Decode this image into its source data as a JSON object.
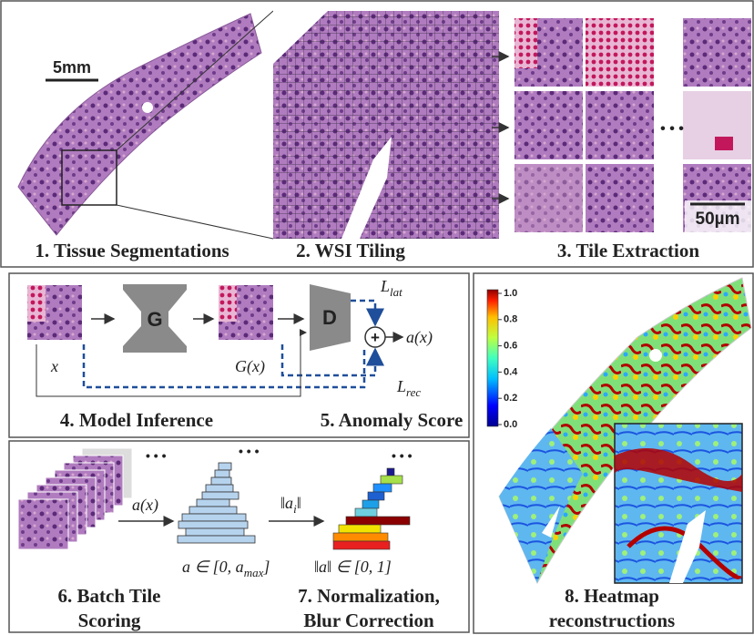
{
  "tiling": {
    "scale_bar": "5mm",
    "tile_scale_bar": "50µm",
    "ellipsis": "• • •",
    "steps": [
      "1. Tissue Segmentations",
      "2. WSI Tiling",
      "3. Tile Extraction"
    ]
  },
  "inference": {
    "generator": "G",
    "discriminator": "D",
    "input": "x",
    "reconstruction": "G(x)",
    "latent_loss": {
      "symbol": "L",
      "subscript": "lat"
    },
    "reconstruction_loss": {
      "symbol": "L",
      "subscript": "rec"
    },
    "combine": "+",
    "score": "a(x)",
    "steps": [
      "4. Model Inference",
      "5. Anomaly Score"
    ]
  },
  "scoring": {
    "score": "a(x)",
    "range": {
      "text": "a ∈ [0, a",
      "subscript": "max",
      "end": "]"
    },
    "norm": {
      "text": "‖a",
      "subscript": "i",
      "end": "‖"
    },
    "norm_range": "‖a‖ ∈ [0, 1]",
    "ellipsis": "• • •",
    "steps": [
      [
        "6. Batch Tile",
        "Scoring"
      ],
      [
        "7. Normalization,",
        "Blur Correction"
      ]
    ]
  },
  "heatmap": {
    "colorbar_ticks": [
      "1.0",
      "0.8",
      "0.6",
      "0.4",
      "0.2",
      "0.0"
    ],
    "caption": [
      "8. Heatmap",
      "reconstructions"
    ]
  }
}
